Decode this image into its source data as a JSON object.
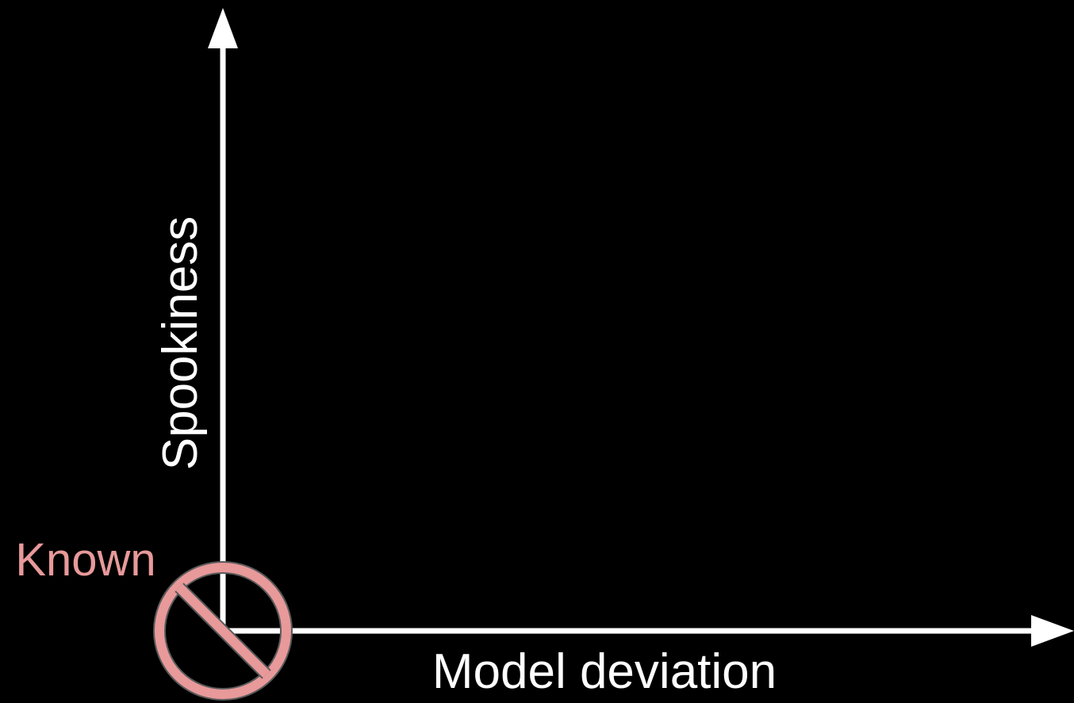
{
  "y_axis_label": "Spookiness",
  "x_axis_label": "Model deviation",
  "origin_label": "Known"
}
